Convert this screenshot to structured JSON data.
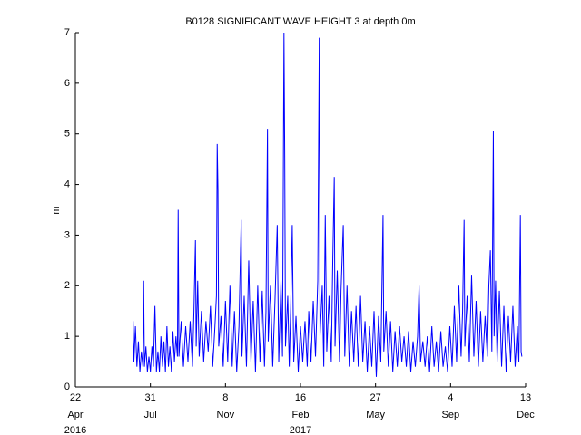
{
  "chart_data": {
    "type": "line",
    "title": "B0128 SIGNIFICANT WAVE HEIGHT 3 at depth 0m",
    "y_label": "m",
    "xlim": [
      "2016-04-22",
      "2017-12-13"
    ],
    "xticks": [
      {
        "value": "2016-04-22",
        "label": "22",
        "month": "Apr",
        "year": "2016"
      },
      {
        "value": "2016-07-31",
        "label": "31",
        "month": "Jul"
      },
      {
        "value": "2016-11-08",
        "label": "8",
        "month": "Nov"
      },
      {
        "value": "2017-02-16",
        "label": "16",
        "month": "Feb",
        "year": "2017"
      },
      {
        "value": "2017-05-27",
        "label": "27",
        "month": "May"
      },
      {
        "value": "2017-09-04",
        "label": "4",
        "month": "Sep"
      },
      {
        "value": "2017-12-13",
        "label": "13",
        "month": "Dec"
      }
    ],
    "ylim": [
      0,
      7
    ],
    "yticks": [
      0,
      1,
      2,
      3,
      4,
      5,
      6,
      7
    ],
    "x": [
      "2016-07-08",
      "2016-07-09",
      "2016-07-11",
      "2016-07-13",
      "2016-07-15",
      "2016-07-17",
      "2016-07-19",
      "2016-07-21",
      "2016-07-22",
      "2016-07-23",
      "2016-07-25",
      "2016-07-27",
      "2016-07-29",
      "2016-07-31",
      "2016-08-02",
      "2016-08-04",
      "2016-08-06",
      "2016-08-08",
      "2016-08-10",
      "2016-08-12",
      "2016-08-14",
      "2016-08-16",
      "2016-08-18",
      "2016-08-20",
      "2016-08-22",
      "2016-08-24",
      "2016-08-26",
      "2016-08-28",
      "2016-08-30",
      "2016-09-01",
      "2016-09-03",
      "2016-09-05",
      "2016-09-06",
      "2016-09-07",
      "2016-09-10",
      "2016-09-13",
      "2016-09-16",
      "2016-09-19",
      "2016-09-22",
      "2016-09-25",
      "2016-09-27",
      "2016-09-29",
      "2016-09-30",
      "2016-10-02",
      "2016-10-04",
      "2016-10-07",
      "2016-10-10",
      "2016-10-13",
      "2016-10-16",
      "2016-10-19",
      "2016-10-22",
      "2016-10-25",
      "2016-10-27",
      "2016-10-28",
      "2016-10-29",
      "2016-10-30",
      "2016-11-02",
      "2016-11-05",
      "2016-11-08",
      "2016-11-11",
      "2016-11-14",
      "2016-11-17",
      "2016-11-20",
      "2016-11-23",
      "2016-11-26",
      "2016-11-29",
      "2016-11-30",
      "2016-12-03",
      "2016-12-06",
      "2016-12-09",
      "2016-12-12",
      "2016-12-15",
      "2016-12-18",
      "2016-12-21",
      "2016-12-24",
      "2016-12-27",
      "2016-12-30",
      "2017-01-01",
      "2017-01-03",
      "2017-01-04",
      "2017-01-07",
      "2017-01-10",
      "2017-01-13",
      "2017-01-16",
      "2017-01-18",
      "2017-01-21",
      "2017-01-23",
      "2017-01-25",
      "2017-01-26",
      "2017-01-27",
      "2017-01-30",
      "2017-02-01",
      "2017-02-03",
      "2017-02-05",
      "2017-02-07",
      "2017-02-10",
      "2017-02-13",
      "2017-02-16",
      "2017-02-19",
      "2017-02-22",
      "2017-02-25",
      "2017-02-27",
      "2017-03-02",
      "2017-03-05",
      "2017-03-08",
      "2017-03-11",
      "2017-03-13",
      "2017-03-14",
      "2017-03-17",
      "2017-03-19",
      "2017-03-21",
      "2017-03-23",
      "2017-03-26",
      "2017-03-29",
      "2017-03-31",
      "2017-04-02",
      "2017-04-03",
      "2017-04-06",
      "2017-04-09",
      "2017-04-11",
      "2017-04-14",
      "2017-04-16",
      "2017-04-19",
      "2017-04-22",
      "2017-04-25",
      "2017-04-28",
      "2017-05-01",
      "2017-05-04",
      "2017-05-07",
      "2017-05-10",
      "2017-05-13",
      "2017-05-16",
      "2017-05-19",
      "2017-05-22",
      "2017-05-25",
      "2017-05-28",
      "2017-05-31",
      "2017-06-03",
      "2017-06-06",
      "2017-06-07",
      "2017-06-10",
      "2017-06-13",
      "2017-06-16",
      "2017-06-19",
      "2017-06-22",
      "2017-06-25",
      "2017-06-28",
      "2017-07-01",
      "2017-07-04",
      "2017-07-07",
      "2017-07-10",
      "2017-07-13",
      "2017-07-16",
      "2017-07-19",
      "2017-07-22",
      "2017-07-24",
      "2017-07-26",
      "2017-07-29",
      "2017-08-01",
      "2017-08-04",
      "2017-08-07",
      "2017-08-10",
      "2017-08-13",
      "2017-08-16",
      "2017-08-19",
      "2017-08-22",
      "2017-08-25",
      "2017-08-28",
      "2017-08-31",
      "2017-09-03",
      "2017-09-06",
      "2017-09-09",
      "2017-09-12",
      "2017-09-15",
      "2017-09-18",
      "2017-09-20",
      "2017-09-22",
      "2017-09-23",
      "2017-09-26",
      "2017-09-29",
      "2017-10-02",
      "2017-10-05",
      "2017-10-08",
      "2017-10-11",
      "2017-10-14",
      "2017-10-17",
      "2017-10-20",
      "2017-10-23",
      "2017-10-25",
      "2017-10-27",
      "2017-10-29",
      "2017-10-31",
      "2017-11-01",
      "2017-11-03",
      "2017-11-05",
      "2017-11-08",
      "2017-11-11",
      "2017-11-14",
      "2017-11-17",
      "2017-11-20",
      "2017-11-23",
      "2017-11-26",
      "2017-11-29",
      "2017-12-02",
      "2017-12-04",
      "2017-12-06",
      "2017-12-07",
      "2017-12-08"
    ],
    "series": [
      {
        "color": "#0000ff",
        "values": [
          1.3,
          0.5,
          1.2,
          0.4,
          0.9,
          0.3,
          0.7,
          0.4,
          2.1,
          0.4,
          0.8,
          0.3,
          0.6,
          0.3,
          0.8,
          0.4,
          1.6,
          0.3,
          0.7,
          0.3,
          1.0,
          0.4,
          0.9,
          0.3,
          1.2,
          0.4,
          0.8,
          0.3,
          1.1,
          0.5,
          1.0,
          0.6,
          3.5,
          0.6,
          1.3,
          0.4,
          1.2,
          0.5,
          1.3,
          0.4,
          1.5,
          2.9,
          0.8,
          2.1,
          0.6,
          1.5,
          0.5,
          1.3,
          0.7,
          1.6,
          0.4,
          1.2,
          1.8,
          4.8,
          3.9,
          0.8,
          1.4,
          0.4,
          1.7,
          0.5,
          2.0,
          0.4,
          1.5,
          0.3,
          1.2,
          3.3,
          0.6,
          1.8,
          0.4,
          2.5,
          0.5,
          1.7,
          0.3,
          2.0,
          0.5,
          1.9,
          0.4,
          1.5,
          5.1,
          0.9,
          2.0,
          0.4,
          1.7,
          3.2,
          0.5,
          2.1,
          0.6,
          7.0,
          4.5,
          0.8,
          1.8,
          0.4,
          1.6,
          3.2,
          0.5,
          1.4,
          0.3,
          1.2,
          0.5,
          1.3,
          0.4,
          1.5,
          0.5,
          1.7,
          0.6,
          2.1,
          6.9,
          1.0,
          2.0,
          0.4,
          3.4,
          0.7,
          1.8,
          0.5,
          2.5,
          4.15,
          0.8,
          2.3,
          0.5,
          1.9,
          3.2,
          0.6,
          2.0,
          0.4,
          1.5,
          0.5,
          1.6,
          0.4,
          1.8,
          0.5,
          1.3,
          0.3,
          1.2,
          0.4,
          1.5,
          0.2,
          1.4,
          0.5,
          3.4,
          0.7,
          1.5,
          0.4,
          1.3,
          0.3,
          1.1,
          0.4,
          1.2,
          0.5,
          1.0,
          0.4,
          1.1,
          0.3,
          0.9,
          0.4,
          1.0,
          2.0,
          0.5,
          0.9,
          0.4,
          1.0,
          0.3,
          1.2,
          0.4,
          0.9,
          0.3,
          1.1,
          0.4,
          0.8,
          0.3,
          1.2,
          0.4,
          1.6,
          0.5,
          2.0,
          0.6,
          1.5,
          3.3,
          0.8,
          1.8,
          0.5,
          2.2,
          0.6,
          1.7,
          0.4,
          1.5,
          0.5,
          1.4,
          0.6,
          2.0,
          2.7,
          0.7,
          5.05,
          1.0,
          2.1,
          0.5,
          1.9,
          0.4,
          1.6,
          0.3,
          1.4,
          0.5,
          1.6,
          0.4,
          1.2,
          0.5,
          3.4,
          0.7,
          0.6
        ]
      }
    ]
  }
}
